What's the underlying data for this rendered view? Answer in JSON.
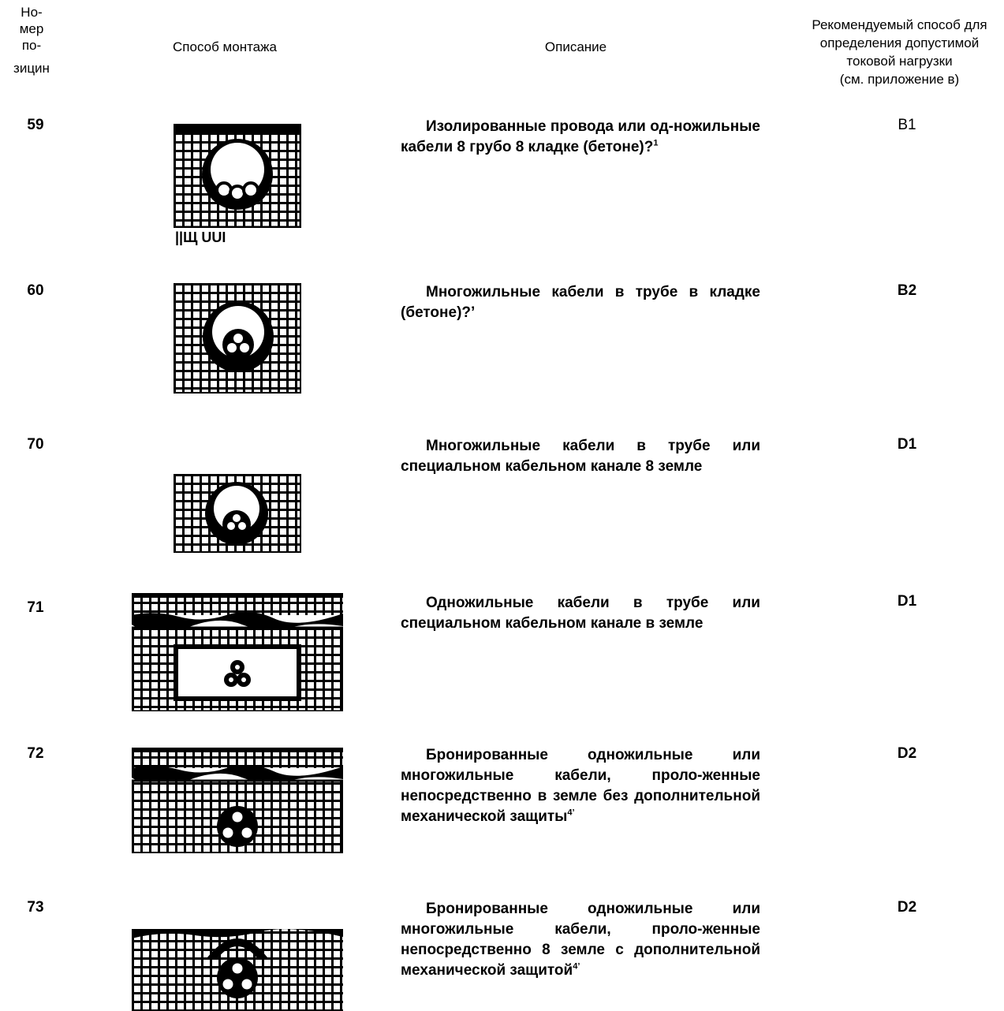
{
  "headers": {
    "position": [
      "Но-",
      "мер",
      "по-",
      "зицин"
    ],
    "method": "Способ монтажа",
    "description": "Описание",
    "recommended": [
      "Рекомендуемый способ для",
      "определения допустимой",
      "токовой нагрузки",
      "(см. приложение в)"
    ]
  },
  "rows": [
    {
      "num": "59",
      "desc": "Изолированные провода или од-ножильные кабели 8 грубо 8 кладке (бетоне)?",
      "sup": "1",
      "rec": "В1",
      "fig_caption": "||Щ UUI"
    },
    {
      "num": "60",
      "desc": "Многожильные кабели в трубе в кладке (бетоне)?’",
      "sup": "",
      "rec": "В2"
    },
    {
      "num": "70",
      "desc": "Многожильные кабели в трубе или специальном кабельном канале 8 земле",
      "sup": "",
      "rec": "D1"
    },
    {
      "num": "71",
      "desc": "Одножильные кабели в трубе или специальном кабельном канале в земле",
      "sup": "",
      "rec": "D1"
    },
    {
      "num": "72",
      "desc": "Бронированные одножильные или многожильные кабели, проло-женные непосредственно в земле без дополнительной механической защиты",
      "sup": "4’",
      "rec": "D2"
    },
    {
      "num": "73",
      "desc": "Бронированные одножильные или многожильные кабели, проло-женные непосредственно 8 земле с дополнительной механической защитой",
      "sup": "4’",
      "rec": "D2"
    }
  ]
}
